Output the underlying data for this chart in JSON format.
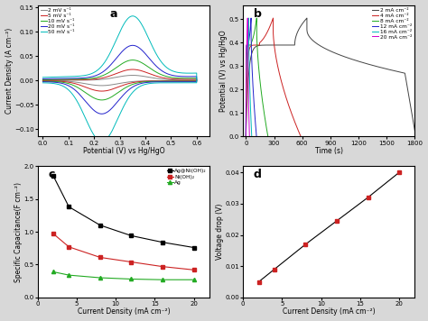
{
  "fig_size": [
    4.74,
    3.56
  ],
  "dpi": 100,
  "background": "#d8d8d8",
  "panel_a": {
    "label": "a",
    "xlim": [
      -0.02,
      0.65
    ],
    "ylim": [
      -0.115,
      0.155
    ],
    "xlabel": "Potential (V) vs Hg/HgO",
    "ylabel": "Current Density (A cm⁻²)",
    "xticks": [
      0.0,
      0.1,
      0.2,
      0.3,
      0.4,
      0.5,
      0.6
    ],
    "yticks": [
      -0.1,
      -0.05,
      0.0,
      0.05,
      0.1,
      0.15
    ],
    "curves": [
      {
        "label": "2 mV s⁻¹",
        "color": "#888888",
        "scale": 0.18
      },
      {
        "label": "5 mV s⁻¹",
        "color": "#cc2222",
        "scale": 0.38
      },
      {
        "label": "10 mV s⁻¹",
        "color": "#22aa22",
        "scale": 0.7
      },
      {
        "label": "20 mV s⁻¹",
        "color": "#2222cc",
        "scale": 1.2
      },
      {
        "label": "50 mV s⁻¹",
        "color": "#00bbbb",
        "scale": 2.2
      }
    ]
  },
  "panel_b": {
    "label": "b",
    "xlim": [
      -30,
      1800
    ],
    "ylim": [
      0.0,
      0.56
    ],
    "xlabel": "Time (s)",
    "ylabel": "Potential (V) vs Hg/HgO",
    "xticks": [
      0,
      300,
      600,
      900,
      1200,
      1500,
      1800
    ],
    "yticks": [
      0.0,
      0.1,
      0.2,
      0.3,
      0.4,
      0.5
    ],
    "curves": [
      {
        "label": "2 mA cm⁻²",
        "color": "#444444",
        "ct": 650,
        "dt": 1160,
        "peak": 0.505,
        "plat": 0.39
      },
      {
        "label": "4 mA cm⁻²",
        "color": "#cc2222",
        "ct": 290,
        "dt": 295,
        "peak": 0.505,
        "plat": 0.39
      },
      {
        "label": "8 mA cm⁻²",
        "color": "#22aa22",
        "ct": 115,
        "dt": 120,
        "peak": 0.505,
        "plat": 0.39
      },
      {
        "label": "12 mA cm⁻²",
        "color": "#2222cc",
        "ct": 55,
        "dt": 58,
        "peak": 0.505,
        "plat": 0.39
      },
      {
        "label": "16 mA cm⁻²",
        "color": "#00bbbb",
        "ct": 30,
        "dt": 32,
        "peak": 0.505,
        "plat": 0.39
      },
      {
        "label": "20 mA cm⁻²",
        "color": "#cc00cc",
        "ct": 18,
        "dt": 20,
        "peak": 0.505,
        "plat": 0.39
      }
    ]
  },
  "panel_c": {
    "label": "c",
    "xlim": [
      0,
      22
    ],
    "ylim": [
      0.0,
      2.0
    ],
    "xlabel": "Current Density (mA cm⁻²)",
    "ylabel": "Specific Capacitance(F cm⁻²)",
    "xticks": [
      0,
      5,
      10,
      15,
      20
    ],
    "yticks": [
      0.0,
      0.5,
      1.0,
      1.5,
      2.0
    ],
    "series": [
      {
        "label": "Ag@Ni(OH)₂",
        "color": "#000000",
        "marker": "s",
        "x": [
          2,
          4,
          8,
          12,
          16,
          20
        ],
        "y": [
          1.85,
          1.38,
          1.1,
          0.94,
          0.84,
          0.76
        ]
      },
      {
        "label": "Ni(OH)₂",
        "color": "#cc2222",
        "marker": "s",
        "x": [
          2,
          4,
          8,
          12,
          16,
          20
        ],
        "y": [
          0.97,
          0.77,
          0.61,
          0.54,
          0.47,
          0.42
        ]
      },
      {
        "label": "Ag",
        "color": "#22aa22",
        "marker": "^",
        "x": [
          2,
          4,
          8,
          12,
          16,
          20
        ],
        "y": [
          0.39,
          0.34,
          0.3,
          0.28,
          0.27,
          0.27
        ]
      }
    ]
  },
  "panel_d": {
    "label": "d",
    "xlim": [
      0,
      22
    ],
    "ylim": [
      0.0,
      0.042
    ],
    "xlabel": "Current Density (mA cm⁻²)",
    "ylabel": "Voltage drop (V)",
    "xticks": [
      0,
      5,
      10,
      15,
      20
    ],
    "yticks": [
      0.0,
      0.01,
      0.02,
      0.03,
      0.04
    ],
    "x": [
      2,
      4,
      8,
      12,
      16,
      20
    ],
    "y": [
      0.005,
      0.009,
      0.017,
      0.0245,
      0.032,
      0.04
    ],
    "dot_color": "#cc2222",
    "marker": "s",
    "line_color": "#000000"
  }
}
